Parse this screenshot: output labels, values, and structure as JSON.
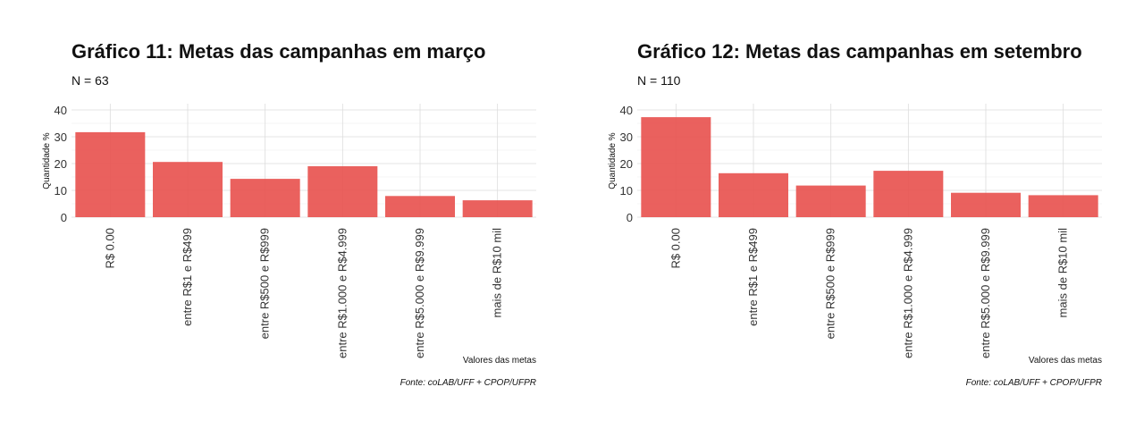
{
  "chart_data": [
    {
      "type": "bar",
      "title": "Gráfico 11: Metas das campanhas em março",
      "subtitle": "N = 63",
      "xlabel": "Valores das metas",
      "ylabel": "Quantidade %",
      "caption": "Fonte: coLAB/UFF + CPOP/UFPR",
      "categories": [
        "R$ 0.00",
        "entre R$1 e R$499",
        "entre R$500 e R$999",
        "entre R$1.000 e R$4.999",
        "entre R$5.000 e R$9.999",
        "mais de R$10 mil"
      ],
      "values": [
        31.7,
        20.6,
        14.3,
        19.0,
        7.9,
        6.3
      ],
      "ylim": [
        0,
        40
      ],
      "yticks": [
        0,
        10,
        20,
        30,
        40
      ],
      "color": "#e8504c",
      "grid": true
    },
    {
      "type": "bar",
      "title": "Gráfico 12: Metas das campanhas em setembro",
      "subtitle": "N = 110",
      "xlabel": "Valores das metas",
      "ylabel": "Quantidade %",
      "caption": "Fonte: coLAB/UFF + CPOP/UFPR",
      "categories": [
        "R$ 0.00",
        "entre R$1 e R$499",
        "entre R$500 e R$999",
        "entre R$1.000 e R$4.999",
        "entre R$5.000 e R$9.999",
        "mais de R$10 mil"
      ],
      "values": [
        37.3,
        16.4,
        11.8,
        17.3,
        9.1,
        8.2
      ],
      "ylim": [
        0,
        40
      ],
      "yticks": [
        0,
        10,
        20,
        30,
        40
      ],
      "color": "#e8504c",
      "grid": true
    }
  ]
}
